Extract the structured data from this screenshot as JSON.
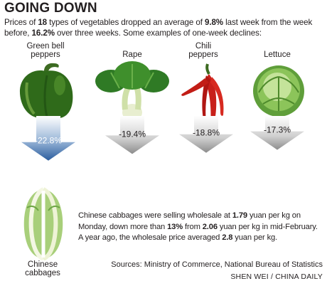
{
  "title": "GOING DOWN",
  "intro": {
    "p1": "Prices of ",
    "count": "18",
    "p2": " types of vegetables dropped an average of ",
    "avg": "9.8%",
    "p3": " last week from the week before, ",
    "three_week": "16.2%",
    "p4": " over three weeks. Some examples of one-week declines:"
  },
  "chart_data": {
    "type": "bar",
    "categories": [
      "Green bell peppers",
      "Rape",
      "Chili peppers",
      "Lettuce"
    ],
    "values": [
      -22.8,
      -19.4,
      -18.8,
      -17.3
    ],
    "value_labels": [
      "-22.8%",
      "-19.4%",
      "-18.8%",
      "-17.3%"
    ],
    "category_labels": [
      [
        "Green bell",
        "peppers"
      ],
      [
        "Rape"
      ],
      [
        "Chili",
        "peppers"
      ],
      [
        "Lettuce"
      ]
    ],
    "title": "GOING DOWN",
    "colors": {
      "arrow_highlight": "#2b5d9e",
      "arrow_gray": "#8c8c8c",
      "arrow_light": "#f2f2f2"
    }
  },
  "cabbage": {
    "label": [
      "Chinese",
      "cabbages"
    ],
    "s1": "Chinese cabbages were selling wholesale at ",
    "price_now": "1.79",
    "s2": " yuan per kg on Monday, down more than ",
    "drop": "13%",
    "s3": " from ",
    "price_feb": "2.06",
    "s4": " yuan per kg in mid-February. A year ago, the wholesale price averaged ",
    "price_year": "2.8",
    "s5": " yuan per kg."
  },
  "source": "Sources: Ministry of Commerce, National Bureau of Statistics",
  "credit": "SHEN WEI / CHINA DAILY"
}
